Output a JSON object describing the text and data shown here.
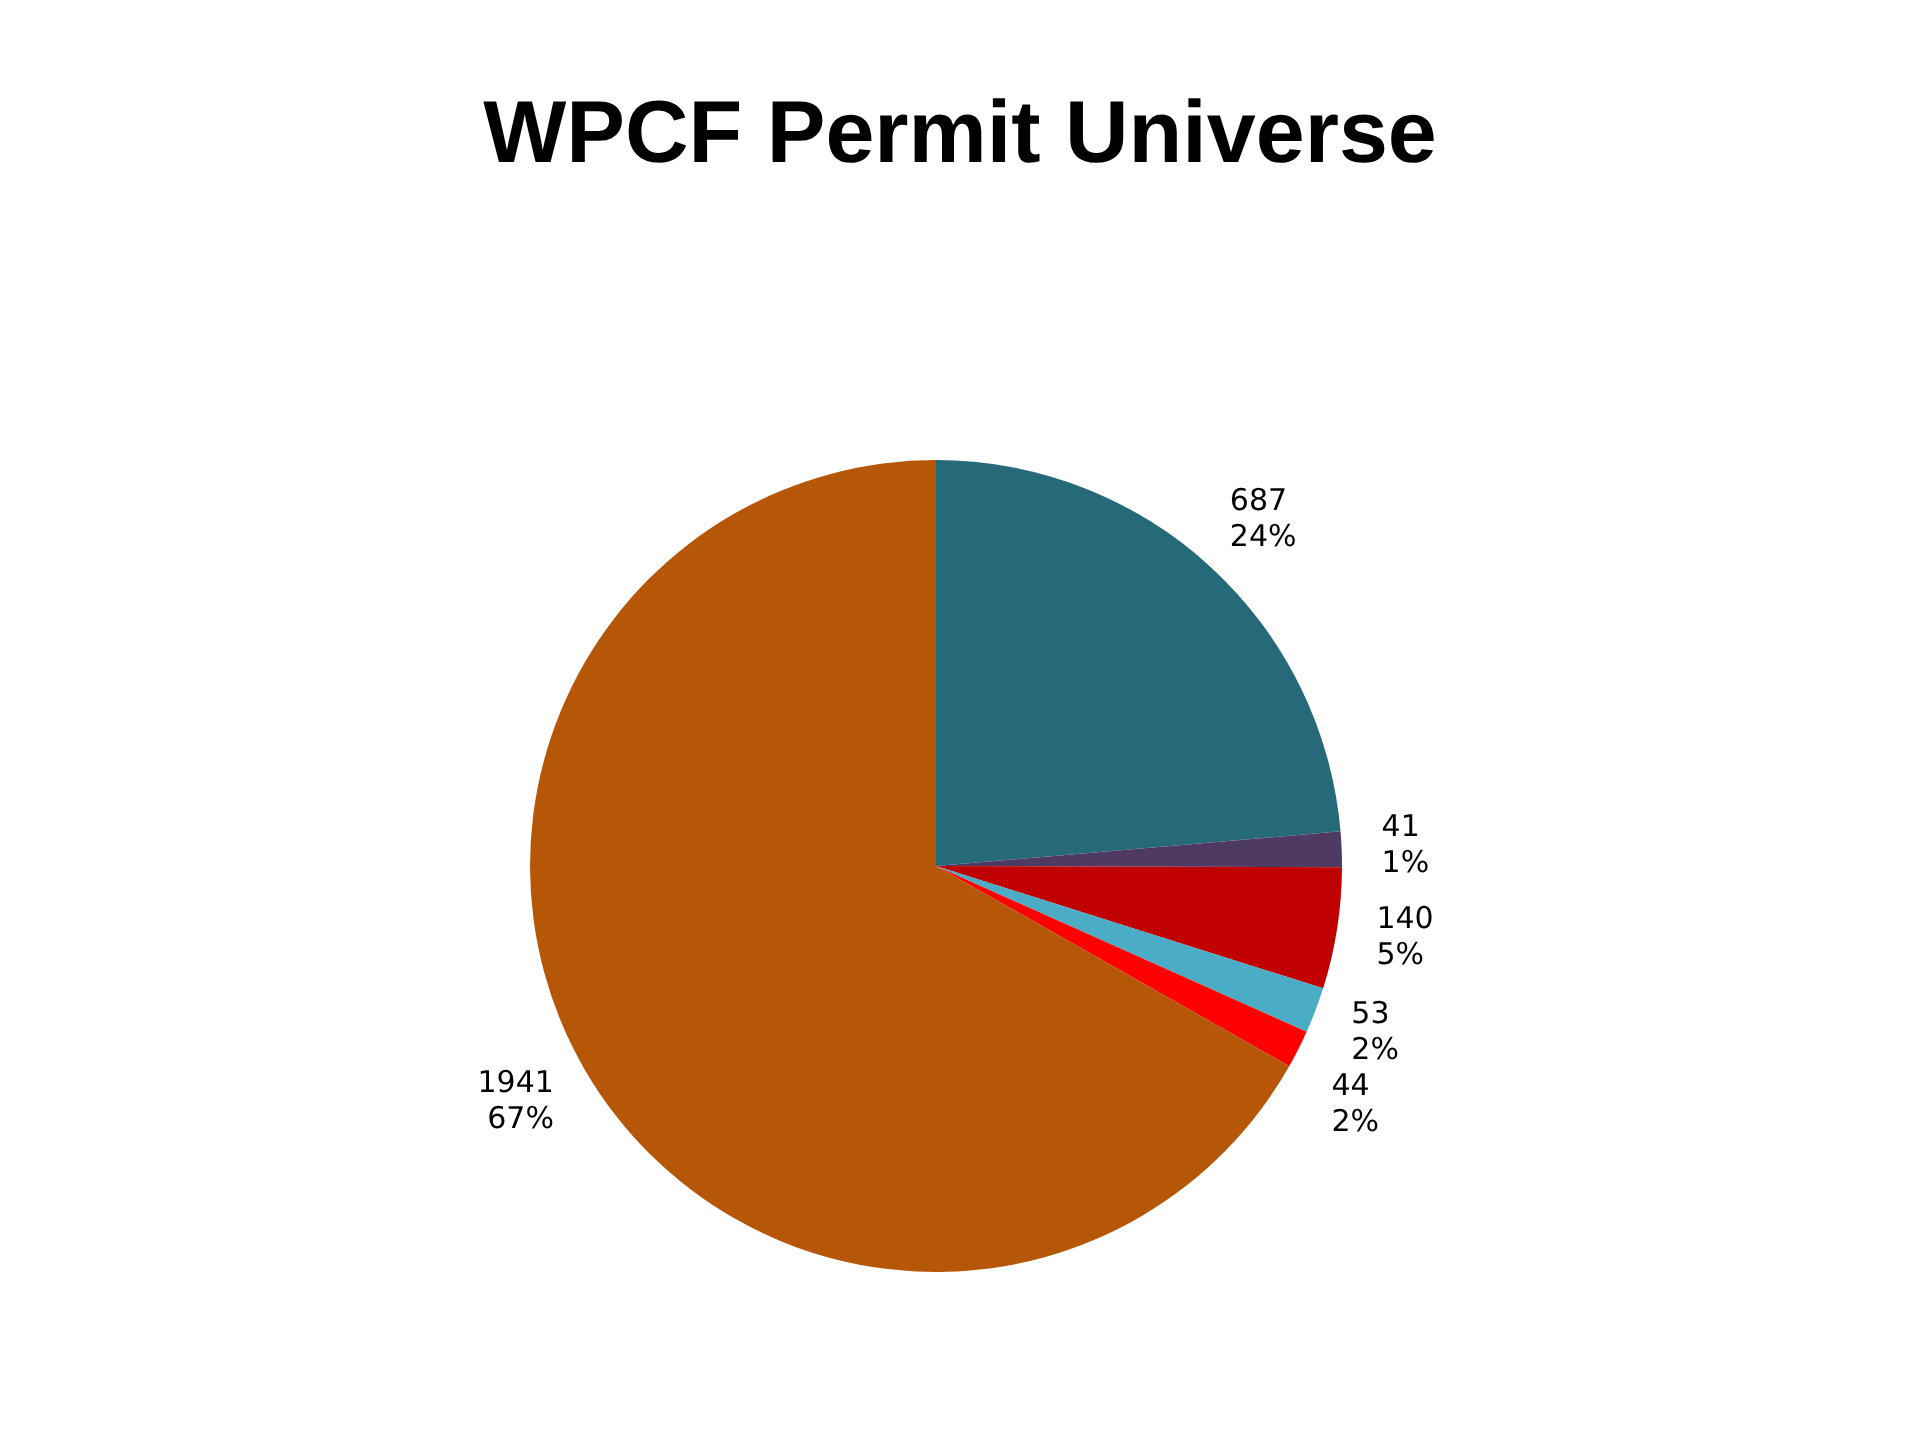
{
  "chart_data": {
    "type": "pie",
    "title": "WPCF Permit Universe",
    "categories": [
      null,
      null,
      null,
      null,
      null,
      null
    ],
    "values": [
      687,
      41,
      140,
      53,
      44,
      1941
    ],
    "colors": [
      "#266a7a",
      "#4f3a63",
      "#c00000",
      "#4bacc6",
      "#ff0000",
      "#b65708"
    ],
    "value_labels": [
      "687\n24%",
      "41\n1%",
      "140\n5%",
      "53\n2%",
      "44\n2%",
      "1941\n67%"
    ],
    "legend": false
  }
}
